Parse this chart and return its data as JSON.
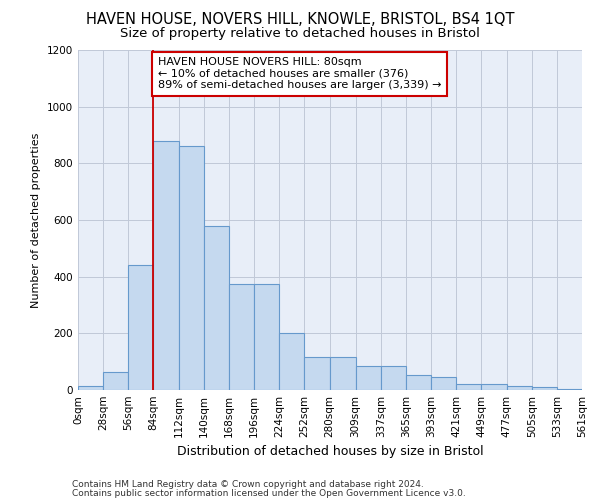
{
  "title": "HAVEN HOUSE, NOVERS HILL, KNOWLE, BRISTOL, BS4 1QT",
  "subtitle": "Size of property relative to detached houses in Bristol",
  "xlabel": "Distribution of detached houses by size in Bristol",
  "ylabel": "Number of detached properties",
  "footer_line1": "Contains HM Land Registry data © Crown copyright and database right 2024.",
  "footer_line2": "Contains public sector information licensed under the Open Government Licence v3.0.",
  "bar_values": [
    14,
    65,
    440,
    880,
    860,
    580,
    375,
    375,
    200,
    115,
    115,
    85,
    85,
    52,
    45,
    22,
    20,
    15,
    10,
    5
  ],
  "bin_edges": [
    0,
    28,
    56,
    84,
    112,
    140,
    168,
    196,
    224,
    252,
    280,
    309,
    337,
    365,
    393,
    421,
    449,
    477,
    505,
    533,
    561
  ],
  "bar_color": "#c5d9ef",
  "bar_edge_color": "#6699cc",
  "property_line_x": 84,
  "property_line_color": "#cc0000",
  "annotation_text": "HAVEN HOUSE NOVERS HILL: 80sqm\n← 10% of detached houses are smaller (376)\n89% of semi-detached houses are larger (3,339) →",
  "annotation_box_color": "#cc0000",
  "ylim": [
    0,
    1200
  ],
  "yticks": [
    0,
    200,
    400,
    600,
    800,
    1000,
    1200
  ],
  "xlim": [
    0,
    561
  ],
  "background_color": "#ffffff",
  "plot_bg_color": "#e8eef8",
  "grid_color": "#c0c8d8",
  "title_fontsize": 10.5,
  "subtitle_fontsize": 9.5,
  "ylabel_fontsize": 8,
  "xlabel_fontsize": 9,
  "tick_fontsize": 7.5,
  "footer_fontsize": 6.5
}
